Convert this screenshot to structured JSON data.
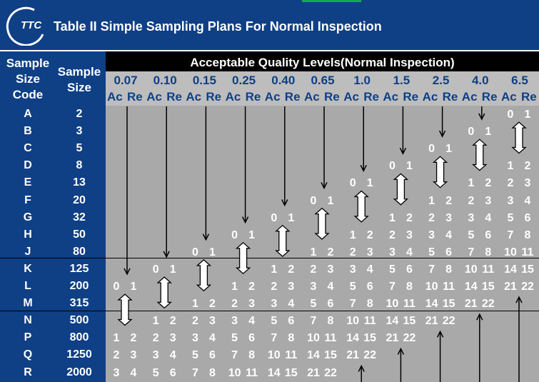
{
  "header": {
    "logo_text": "TTC",
    "title": "Table II Simple Sampling Plans For Normal Inspection"
  },
  "table": {
    "col_sample_size_code": "Sample Size Code",
    "col_sample_size": "Sample Size",
    "aql_title": "Acceptable Quality Levels(Normal Inspection)",
    "ac_label": "Ac",
    "re_label": "Re",
    "aql_levels": [
      "0.07",
      "0.10",
      "0.15",
      "0.25",
      "0.40",
      "0.65",
      "1.0",
      "1.5",
      "2.5",
      "4.0",
      "6.5"
    ],
    "rows": [
      {
        "code": "A",
        "size": "2"
      },
      {
        "code": "B",
        "size": "3"
      },
      {
        "code": "C",
        "size": "5"
      },
      {
        "code": "D",
        "size": "8"
      },
      {
        "code": "E",
        "size": "13"
      },
      {
        "code": "F",
        "size": "20"
      },
      {
        "code": "G",
        "size": "32"
      },
      {
        "code": "H",
        "size": "50"
      },
      {
        "code": "J",
        "size": "80"
      },
      {
        "code": "K",
        "size": "125"
      },
      {
        "code": "L",
        "size": "200"
      },
      {
        "code": "M",
        "size": "315"
      },
      {
        "code": "N",
        "size": "500"
      },
      {
        "code": "P",
        "size": "800"
      },
      {
        "code": "Q",
        "size": "1250"
      },
      {
        "code": "R",
        "size": "2000"
      }
    ],
    "cells": [
      {
        "row": 0,
        "col": 10,
        "ac": "0",
        "re": "1"
      },
      {
        "row": 1,
        "col": 9,
        "ac": "0",
        "re": "1"
      },
      {
        "row": 2,
        "col": 8,
        "ac": "0",
        "re": "1"
      },
      {
        "row": 3,
        "col": 7,
        "ac": "0",
        "re": "1"
      },
      {
        "row": 3,
        "col": 10,
        "ac": "1",
        "re": "2"
      },
      {
        "row": 4,
        "col": 6,
        "ac": "0",
        "re": "1"
      },
      {
        "row": 4,
        "col": 9,
        "ac": "1",
        "re": "2"
      },
      {
        "row": 4,
        "col": 10,
        "ac": "2",
        "re": "3"
      },
      {
        "row": 5,
        "col": 5,
        "ac": "0",
        "re": "1"
      },
      {
        "row": 5,
        "col": 8,
        "ac": "1",
        "re": "2"
      },
      {
        "row": 5,
        "col": 9,
        "ac": "2",
        "re": "3"
      },
      {
        "row": 5,
        "col": 10,
        "ac": "3",
        "re": "4"
      },
      {
        "row": 6,
        "col": 4,
        "ac": "0",
        "re": "1"
      },
      {
        "row": 6,
        "col": 7,
        "ac": "1",
        "re": "2"
      },
      {
        "row": 6,
        "col": 8,
        "ac": "2",
        "re": "3"
      },
      {
        "row": 6,
        "col": 9,
        "ac": "3",
        "re": "4"
      },
      {
        "row": 6,
        "col": 10,
        "ac": "5",
        "re": "6"
      },
      {
        "row": 7,
        "col": 3,
        "ac": "0",
        "re": "1"
      },
      {
        "row": 7,
        "col": 6,
        "ac": "1",
        "re": "2"
      },
      {
        "row": 7,
        "col": 7,
        "ac": "2",
        "re": "3"
      },
      {
        "row": 7,
        "col": 8,
        "ac": "3",
        "re": "4"
      },
      {
        "row": 7,
        "col": 9,
        "ac": "5",
        "re": "6"
      },
      {
        "row": 7,
        "col": 10,
        "ac": "7",
        "re": "8"
      },
      {
        "row": 8,
        "col": 2,
        "ac": "0",
        "re": "1"
      },
      {
        "row": 8,
        "col": 5,
        "ac": "1",
        "re": "2"
      },
      {
        "row": 8,
        "col": 6,
        "ac": "2",
        "re": "3"
      },
      {
        "row": 8,
        "col": 7,
        "ac": "3",
        "re": "4"
      },
      {
        "row": 8,
        "col": 8,
        "ac": "5",
        "re": "6"
      },
      {
        "row": 8,
        "col": 9,
        "ac": "7",
        "re": "8"
      },
      {
        "row": 8,
        "col": 10,
        "ac": "10",
        "re": "11"
      },
      {
        "row": 9,
        "col": 1,
        "ac": "0",
        "re": "1"
      },
      {
        "row": 9,
        "col": 4,
        "ac": "1",
        "re": "2"
      },
      {
        "row": 9,
        "col": 5,
        "ac": "2",
        "re": "3"
      },
      {
        "row": 9,
        "col": 6,
        "ac": "3",
        "re": "4"
      },
      {
        "row": 9,
        "col": 7,
        "ac": "5",
        "re": "6"
      },
      {
        "row": 9,
        "col": 8,
        "ac": "7",
        "re": "8"
      },
      {
        "row": 9,
        "col": 9,
        "ac": "10",
        "re": "11"
      },
      {
        "row": 9,
        "col": 10,
        "ac": "14",
        "re": "15"
      },
      {
        "row": 10,
        "col": 0,
        "ac": "0",
        "re": "1"
      },
      {
        "row": 10,
        "col": 3,
        "ac": "1",
        "re": "2"
      },
      {
        "row": 10,
        "col": 4,
        "ac": "2",
        "re": "3"
      },
      {
        "row": 10,
        "col": 5,
        "ac": "3",
        "re": "4"
      },
      {
        "row": 10,
        "col": 6,
        "ac": "5",
        "re": "6"
      },
      {
        "row": 10,
        "col": 7,
        "ac": "7",
        "re": "8"
      },
      {
        "row": 10,
        "col": 8,
        "ac": "10",
        "re": "11"
      },
      {
        "row": 10,
        "col": 9,
        "ac": "14",
        "re": "15"
      },
      {
        "row": 10,
        "col": 10,
        "ac": "21",
        "re": "22"
      },
      {
        "row": 11,
        "col": 2,
        "ac": "1",
        "re": "2"
      },
      {
        "row": 11,
        "col": 3,
        "ac": "2",
        "re": "3"
      },
      {
        "row": 11,
        "col": 4,
        "ac": "3",
        "re": "4"
      },
      {
        "row": 11,
        "col": 5,
        "ac": "5",
        "re": "6"
      },
      {
        "row": 11,
        "col": 6,
        "ac": "7",
        "re": "8"
      },
      {
        "row": 11,
        "col": 7,
        "ac": "10",
        "re": "11"
      },
      {
        "row": 11,
        "col": 8,
        "ac": "14",
        "re": "15"
      },
      {
        "row": 11,
        "col": 9,
        "ac": "21",
        "re": "22"
      },
      {
        "row": 12,
        "col": 1,
        "ac": "1",
        "re": "2"
      },
      {
        "row": 12,
        "col": 2,
        "ac": "2",
        "re": "3"
      },
      {
        "row": 12,
        "col": 3,
        "ac": "3",
        "re": "4"
      },
      {
        "row": 12,
        "col": 4,
        "ac": "5",
        "re": "6"
      },
      {
        "row": 12,
        "col": 5,
        "ac": "7",
        "re": "8"
      },
      {
        "row": 12,
        "col": 6,
        "ac": "10",
        "re": "11"
      },
      {
        "row": 12,
        "col": 7,
        "ac": "14",
        "re": "15"
      },
      {
        "row": 12,
        "col": 8,
        "ac": "21",
        "re": "22"
      },
      {
        "row": 13,
        "col": 0,
        "ac": "1",
        "re": "2"
      },
      {
        "row": 13,
        "col": 1,
        "ac": "2",
        "re": "3"
      },
      {
        "row": 13,
        "col": 2,
        "ac": "3",
        "re": "4"
      },
      {
        "row": 13,
        "col": 3,
        "ac": "5",
        "re": "6"
      },
      {
        "row": 13,
        "col": 4,
        "ac": "7",
        "re": "8"
      },
      {
        "row": 13,
        "col": 5,
        "ac": "10",
        "re": "11"
      },
      {
        "row": 13,
        "col": 6,
        "ac": "14",
        "re": "15"
      },
      {
        "row": 13,
        "col": 7,
        "ac": "21",
        "re": "22"
      },
      {
        "row": 14,
        "col": 0,
        "ac": "2",
        "re": "3"
      },
      {
        "row": 14,
        "col": 1,
        "ac": "3",
        "re": "4"
      },
      {
        "row": 14,
        "col": 2,
        "ac": "5",
        "re": "6"
      },
      {
        "row": 14,
        "col": 3,
        "ac": "7",
        "re": "8"
      },
      {
        "row": 14,
        "col": 4,
        "ac": "10",
        "re": "11"
      },
      {
        "row": 14,
        "col": 5,
        "ac": "14",
        "re": "15"
      },
      {
        "row": 14,
        "col": 6,
        "ac": "21",
        "re": "22"
      },
      {
        "row": 15,
        "col": 0,
        "ac": "3",
        "re": "4"
      },
      {
        "row": 15,
        "col": 1,
        "ac": "5",
        "re": "6"
      },
      {
        "row": 15,
        "col": 2,
        "ac": "7",
        "re": "8"
      },
      {
        "row": 15,
        "col": 3,
        "ac": "10",
        "re": "11"
      },
      {
        "row": 15,
        "col": 4,
        "ac": "14",
        "re": "15"
      },
      {
        "row": 15,
        "col": 5,
        "ac": "21",
        "re": "22"
      }
    ],
    "down_arrows": [
      {
        "col": 0,
        "from_row": 0,
        "to_row": 9
      },
      {
        "col": 1,
        "from_row": 0,
        "to_row": 8
      },
      {
        "col": 2,
        "from_row": 0,
        "to_row": 7
      },
      {
        "col": 3,
        "from_row": 0,
        "to_row": 6
      },
      {
        "col": 4,
        "from_row": 0,
        "to_row": 5
      },
      {
        "col": 5,
        "from_row": 0,
        "to_row": 4
      },
      {
        "col": 6,
        "from_row": 0,
        "to_row": 3
      },
      {
        "col": 7,
        "from_row": 0,
        "to_row": 2
      },
      {
        "col": 8,
        "from_row": 0,
        "to_row": 1
      },
      {
        "col": 9,
        "from_row": 0,
        "to_row": 0
      }
    ],
    "up_arrows": [
      {
        "col": 6,
        "from_row": 15,
        "to_row": 15
      },
      {
        "col": 7,
        "from_row": 15,
        "to_row": 14
      },
      {
        "col": 8,
        "from_row": 15,
        "to_row": 13
      },
      {
        "col": 9,
        "from_row": 15,
        "to_row": 12
      },
      {
        "col": 10,
        "from_row": 15,
        "to_row": 11
      }
    ],
    "double_arrows": [
      {
        "col": 0,
        "row": 11
      },
      {
        "col": 1,
        "row": 10
      },
      {
        "col": 2,
        "row": 9
      },
      {
        "col": 3,
        "row": 8
      },
      {
        "col": 4,
        "row": 7
      },
      {
        "col": 5,
        "row": 6
      },
      {
        "col": 6,
        "row": 5
      },
      {
        "col": 7,
        "row": 4
      },
      {
        "col": 8,
        "row": 3
      },
      {
        "col": 9,
        "row": 2
      },
      {
        "col": 10,
        "row": 1
      }
    ]
  },
  "colors": {
    "header_blue": "#0f3f85",
    "grid_gray": "#a9a9a9",
    "accent_green": "#1aa84a"
  }
}
